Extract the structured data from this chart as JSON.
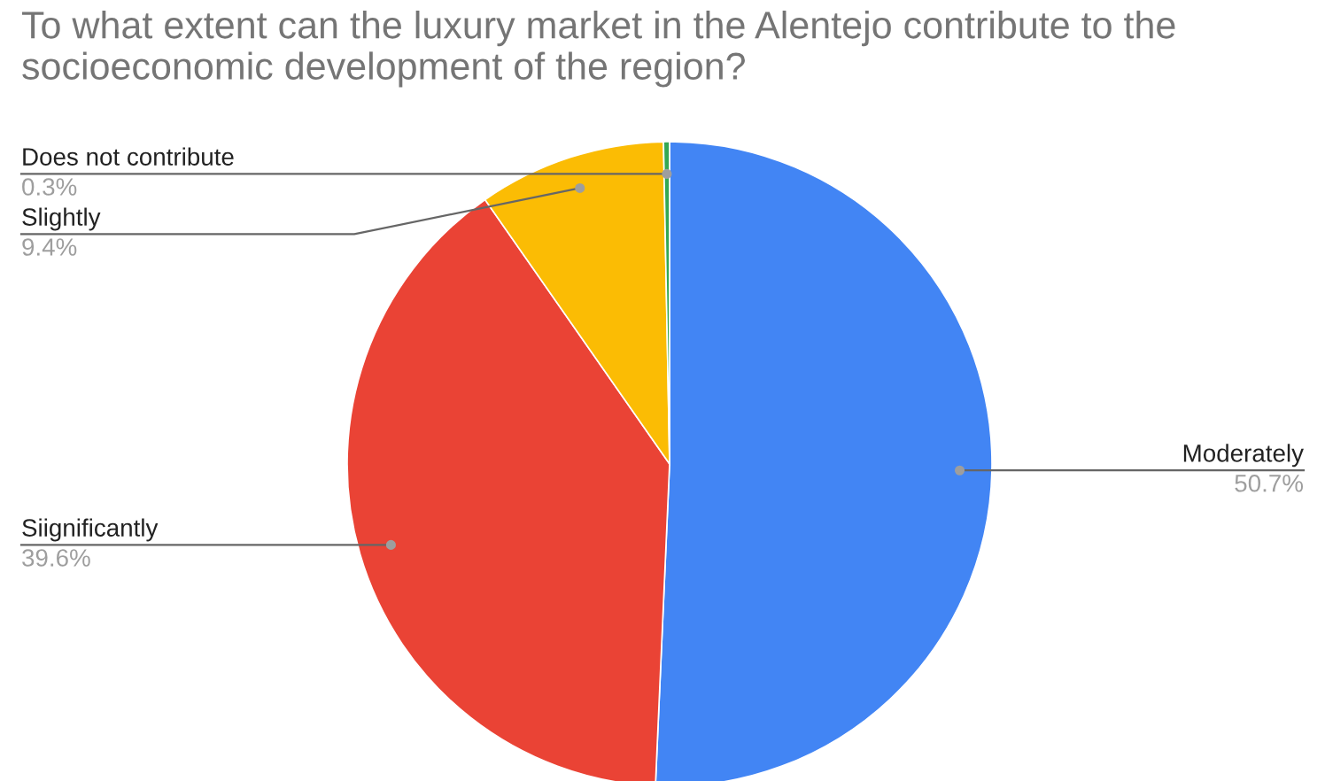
{
  "chart_data": {
    "type": "pie",
    "title": "To what extent can the luxury market in the Alentejo contribute to the socioeconomic development of the region?",
    "categories": [
      "Moderately",
      "Siignificantly",
      "Slightly",
      "Does not contribute"
    ],
    "values": [
      50.7,
      39.6,
      9.4,
      0.3
    ],
    "value_labels": [
      "50.7%",
      "39.6%",
      "9.4%",
      "0.3%"
    ],
    "colors": [
      "#4285f4",
      "#ea4335",
      "#fbbc04",
      "#34a853"
    ],
    "legend": false
  }
}
